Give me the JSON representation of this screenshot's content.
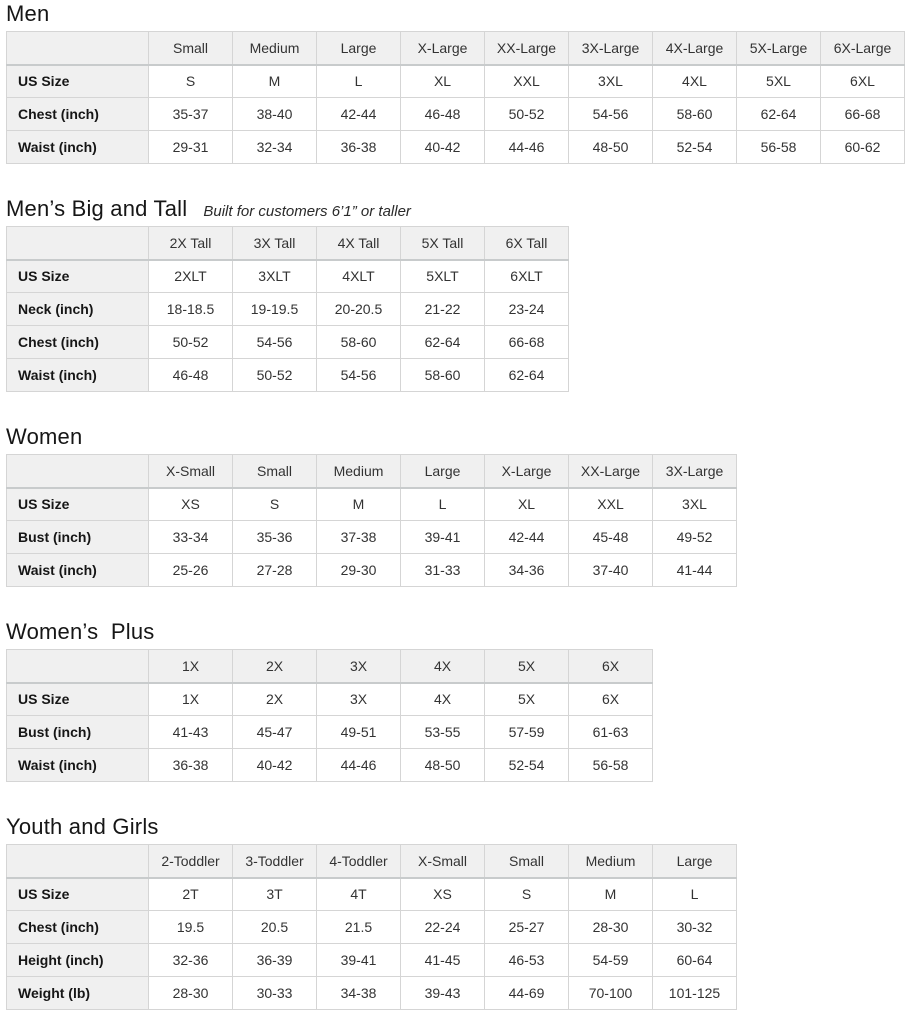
{
  "colors": {
    "header_bg": "#f0f0f0",
    "border": "#d5d5d5",
    "text": "#0f1111"
  },
  "sections": [
    {
      "title": "Men",
      "subtitle": "",
      "columns": [
        "Small",
        "Medium",
        "Large",
        "X-Large",
        "XX-Large",
        "3X-Large",
        "4X-Large",
        "5X-Large",
        "6X-Large"
      ],
      "rows": [
        {
          "label": "US Size",
          "values": [
            "S",
            "M",
            "L",
            "XL",
            "XXL",
            "3XL",
            "4XL",
            "5XL",
            "6XL"
          ]
        },
        {
          "label": "Chest (inch)",
          "values": [
            "35-37",
            "38-40",
            "42-44",
            "46-48",
            "50-52",
            "54-56",
            "58-60",
            "62-64",
            "66-68"
          ]
        },
        {
          "label": "Waist (inch)",
          "values": [
            "29-31",
            "32-34",
            "36-38",
            "40-42",
            "44-46",
            "48-50",
            "52-54",
            "56-58",
            "60-62"
          ]
        }
      ]
    },
    {
      "title": "Men’s Big and Tall",
      "subtitle": "Built for customers 6’1” or taller",
      "columns": [
        "2X Tall",
        "3X Tall",
        "4X Tall",
        "5X Tall",
        "6X Tall"
      ],
      "rows": [
        {
          "label": "US Size",
          "values": [
            "2XLT",
            "3XLT",
            "4XLT",
            "5XLT",
            "6XLT"
          ]
        },
        {
          "label": "Neck (inch)",
          "values": [
            "18-18.5",
            "19-19.5",
            "20-20.5",
            "21-22",
            "23-24"
          ]
        },
        {
          "label": "Chest (inch)",
          "values": [
            "50-52",
            "54-56",
            "58-60",
            "62-64",
            "66-68"
          ]
        },
        {
          "label": "Waist (inch)",
          "values": [
            "46-48",
            "50-52",
            "54-56",
            "58-60",
            "62-64"
          ]
        }
      ]
    },
    {
      "title": "Women",
      "subtitle": "",
      "columns": [
        "X-Small",
        "Small",
        "Medium",
        "Large",
        "X-Large",
        "XX-Large",
        "3X-Large"
      ],
      "rows": [
        {
          "label": "US Size",
          "values": [
            "XS",
            "S",
            "M",
            "L",
            "XL",
            "XXL",
            "3XL"
          ]
        },
        {
          "label": "Bust (inch)",
          "values": [
            "33-34",
            "35-36",
            "37-38",
            "39-41",
            "42-44",
            "45-48",
            "49-52"
          ]
        },
        {
          "label": "Waist (inch)",
          "values": [
            "25-26",
            "27-28",
            "29-30",
            "31-33",
            "34-36",
            "37-40",
            "41-44"
          ]
        }
      ]
    },
    {
      "title": "Women’s  Plus",
      "subtitle": "",
      "columns": [
        "1X",
        "2X",
        "3X",
        "4X",
        "5X",
        "6X"
      ],
      "rows": [
        {
          "label": "US Size",
          "values": [
            "1X",
            "2X",
            "3X",
            "4X",
            "5X",
            "6X"
          ]
        },
        {
          "label": "Bust (inch)",
          "values": [
            "41-43",
            "45-47",
            "49-51",
            "53-55",
            "57-59",
            "61-63"
          ]
        },
        {
          "label": "Waist (inch)",
          "values": [
            "36-38",
            "40-42",
            "44-46",
            "48-50",
            "52-54",
            "56-58"
          ]
        }
      ]
    },
    {
      "title": "Youth and Girls",
      "subtitle": "",
      "columns": [
        "2-Toddler",
        "3-Toddler",
        "4-Toddler",
        "X-Small",
        "Small",
        "Medium",
        "Large"
      ],
      "rows": [
        {
          "label": "US Size",
          "values": [
            "2T",
            "3T",
            "4T",
            "XS",
            "S",
            "M",
            "L"
          ]
        },
        {
          "label": "Chest (inch)",
          "values": [
            "19.5",
            "20.5",
            "21.5",
            "22-24",
            "25-27",
            "28-30",
            "30-32"
          ]
        },
        {
          "label": "Height (inch)",
          "values": [
            "32-36",
            "36-39",
            "39-41",
            "41-45",
            "46-53",
            "54-59",
            "60-64"
          ]
        },
        {
          "label": "Weight (lb)",
          "values": [
            "28-30",
            "30-33",
            "34-38",
            "39-43",
            "44-69",
            "70-100",
            "101-125"
          ]
        }
      ]
    }
  ]
}
